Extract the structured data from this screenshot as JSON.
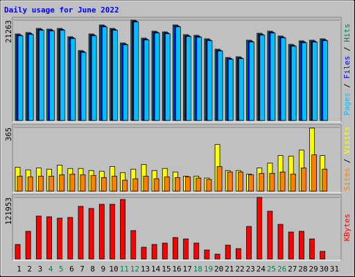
{
  "chart_data": [
    {
      "type": "bar",
      "title": "Daily usage for June 2022",
      "title_color": "#0000ff",
      "ylim": [
        0,
        21263
      ],
      "yticks": [
        21263
      ],
      "legend_separator": " / ",
      "series": [
        {
          "name": "Hits",
          "color": "#00805c",
          "values": [
            18330,
            18623,
            19503,
            19357,
            19503,
            17744,
            14811,
            18330,
            20237,
            19503,
            16424,
            21263,
            17450,
            18917,
            18770,
            20237,
            18183,
            18037,
            17304,
            15104,
            13344,
            13491,
            17010,
            18477,
            18917,
            17890,
            16130,
            16864,
            17010,
            17304,
            null
          ]
        },
        {
          "name": "Files",
          "color": "#0000ff",
          "values": [
            18130,
            18423,
            19303,
            19157,
            19303,
            17544,
            14611,
            18130,
            20037,
            19303,
            16224,
            21063,
            17250,
            18717,
            18570,
            20037,
            17983,
            17837,
            17104,
            14904,
            13144,
            13291,
            16810,
            18277,
            18717,
            17690,
            15930,
            16664,
            16810,
            17104,
            null
          ]
        },
        {
          "name": "Pages",
          "color": "#00c0ff",
          "values": [
            17930,
            18223,
            19103,
            18957,
            19103,
            17344,
            14411,
            17930,
            19837,
            19103,
            16024,
            20863,
            17050,
            18517,
            18370,
            19837,
            17783,
            17637,
            16904,
            14704,
            12944,
            13091,
            16610,
            18077,
            18517,
            17490,
            15730,
            16464,
            16610,
            16904,
            null
          ]
        }
      ]
    },
    {
      "type": "bar",
      "ylim": [
        0,
        365
      ],
      "yticks": [
        365
      ],
      "legend_separator": " / ",
      "series": [
        {
          "name": "Visits",
          "color": "#ffff00",
          "values": [
            137,
            122,
            133,
            126,
            149,
            130,
            130,
            118,
            114,
            141,
            106,
            126,
            153,
            118,
            130,
            110,
            86,
            86,
            75,
            267,
            118,
            118,
            98,
            133,
            161,
            204,
            200,
            235,
            361,
            204,
            null
          ]
        },
        {
          "name": "Sites",
          "color": "#ff8000",
          "values": [
            86,
            82,
            86,
            86,
            94,
            98,
            94,
            90,
            78,
            86,
            63,
            71,
            86,
            71,
            82,
            78,
            82,
            75,
            67,
            141,
            110,
            110,
            94,
            102,
            102,
            110,
            98,
            133,
            208,
            126,
            null
          ]
        }
      ]
    },
    {
      "type": "bar",
      "ylim": [
        0,
        121953
      ],
      "yticks": [
        121953
      ],
      "categories": [
        "1",
        "2",
        "3",
        "4",
        "5",
        "6",
        "7",
        "8",
        "9",
        "10",
        "11",
        "12",
        "13",
        "14",
        "15",
        "16",
        "17",
        "18",
        "19",
        "20",
        "21",
        "22",
        "23",
        "24",
        "25",
        "26",
        "27",
        "28",
        "29",
        "30",
        "31"
      ],
      "weekends": [
        3,
        4,
        10,
        11,
        17,
        18,
        24,
        25
      ],
      "weekend_color": "#00805c",
      "series": [
        {
          "name": "KBytes",
          "color": "#ff0000",
          "values": [
            28775,
            54810,
            84955,
            83585,
            80845,
            82215,
            104139,
            100028,
            108250,
            108250,
            117842,
            56180,
            23294,
            28775,
            31516,
            42478,
            39737,
            31516,
            17813,
            9592,
            27405,
            20554,
            64402,
            121953,
            94548,
            68513,
            53440,
            54810,
            39737,
            15073,
            null
          ]
        }
      ]
    }
  ]
}
